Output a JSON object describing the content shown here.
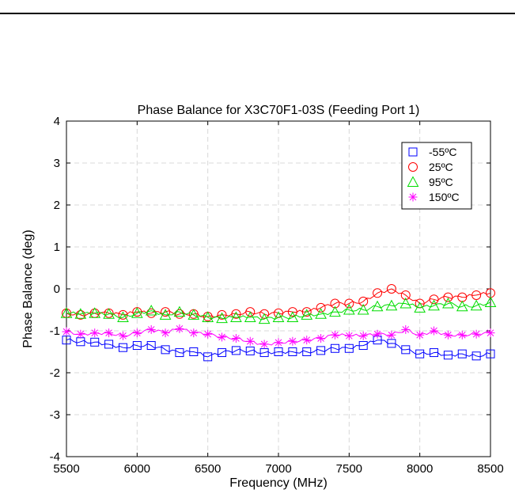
{
  "chart_data": {
    "type": "line",
    "title": "Phase Balance for X3C70F1-03S (Feeding Port 1)",
    "xlabel": "Frequency (MHz)",
    "ylabel": "Phase Balance (deg)",
    "xlim": [
      5500,
      8500
    ],
    "ylim": [
      -4,
      4
    ],
    "xticks": [
      "5500",
      "6000",
      "6500",
      "7000",
      "7500",
      "8000",
      "8500"
    ],
    "yticks": [
      "-4",
      "-3",
      "-2",
      "-1",
      "0",
      "1",
      "2",
      "3",
      "4"
    ],
    "grid": true,
    "legend_position": "top-right",
    "x": [
      5500,
      5600,
      5700,
      5800,
      5900,
      6000,
      6100,
      6200,
      6300,
      6400,
      6500,
      6600,
      6700,
      6800,
      6900,
      7000,
      7100,
      7200,
      7300,
      7400,
      7500,
      7600,
      7700,
      7800,
      7900,
      8000,
      8100,
      8200,
      8300,
      8400,
      8500
    ],
    "series": [
      {
        "name": "-55ºC",
        "color": "#0000ff",
        "marker": "square",
        "values": [
          -1.22,
          -1.26,
          -1.27,
          -1.32,
          -1.4,
          -1.35,
          -1.35,
          -1.45,
          -1.52,
          -1.5,
          -1.62,
          -1.52,
          -1.47,
          -1.48,
          -1.52,
          -1.5,
          -1.5,
          -1.5,
          -1.47,
          -1.42,
          -1.42,
          -1.35,
          -1.22,
          -1.3,
          -1.45,
          -1.55,
          -1.52,
          -1.58,
          -1.55,
          -1.6,
          -1.55
        ]
      },
      {
        "name": "25ºC",
        "color": "#ff0000",
        "marker": "circle",
        "values": [
          -0.58,
          -0.62,
          -0.58,
          -0.58,
          -0.62,
          -0.55,
          -0.58,
          -0.55,
          -0.6,
          -0.6,
          -0.66,
          -0.62,
          -0.6,
          -0.55,
          -0.6,
          -0.58,
          -0.55,
          -0.55,
          -0.45,
          -0.35,
          -0.35,
          -0.3,
          -0.1,
          0.0,
          -0.15,
          -0.35,
          -0.25,
          -0.2,
          -0.2,
          -0.15,
          -0.1
        ]
      },
      {
        "name": "95ºC",
        "color": "#00dd00",
        "marker": "triangle",
        "values": [
          -0.58,
          -0.6,
          -0.58,
          -0.6,
          -0.68,
          -0.58,
          -0.52,
          -0.62,
          -0.55,
          -0.62,
          -0.68,
          -0.7,
          -0.68,
          -0.68,
          -0.72,
          -0.68,
          -0.68,
          -0.62,
          -0.6,
          -0.55,
          -0.5,
          -0.5,
          -0.42,
          -0.4,
          -0.35,
          -0.45,
          -0.4,
          -0.35,
          -0.42,
          -0.4,
          -0.32
        ]
      },
      {
        "name": "150ºC",
        "color": "#ff00ff",
        "marker": "asterisk",
        "values": [
          -1.02,
          -1.08,
          -1.05,
          -1.05,
          -1.12,
          -1.05,
          -0.97,
          -1.05,
          -0.95,
          -1.05,
          -1.08,
          -1.15,
          -1.18,
          -1.25,
          -1.32,
          -1.28,
          -1.25,
          -1.22,
          -1.18,
          -1.1,
          -1.12,
          -1.12,
          -1.08,
          -1.1,
          -0.97,
          -1.1,
          -1.0,
          -1.1,
          -1.1,
          -1.08,
          -1.05
        ]
      }
    ]
  }
}
